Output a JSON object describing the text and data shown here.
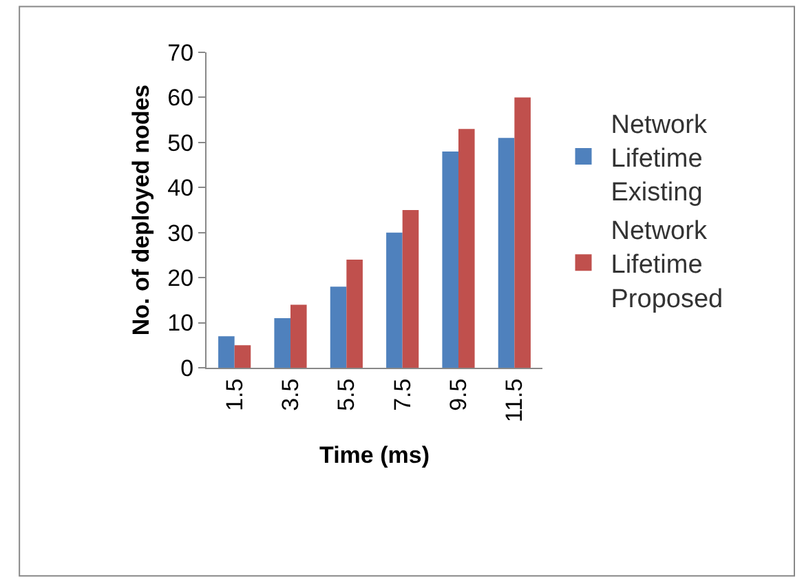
{
  "chart_data": {
    "type": "bar",
    "xlabel": "Time (ms)",
    "ylabel": "No. of deployed nodes",
    "categories": [
      "1.5",
      "3.5",
      "5.5",
      "7.5",
      "9.5",
      "11.5"
    ],
    "series": [
      {
        "name": "Network Lifetime Existing",
        "color": "#4f81bd",
        "values": [
          7,
          11,
          18,
          30,
          48,
          51
        ]
      },
      {
        "name": "Network Lifetime Proposed",
        "color": "#c0504d",
        "values": [
          5,
          14,
          24,
          35,
          53,
          60
        ]
      }
    ],
    "ylim": [
      0,
      70
    ],
    "yticks": [
      0,
      10,
      20,
      30,
      40,
      50,
      60,
      70
    ],
    "legend": "right"
  }
}
